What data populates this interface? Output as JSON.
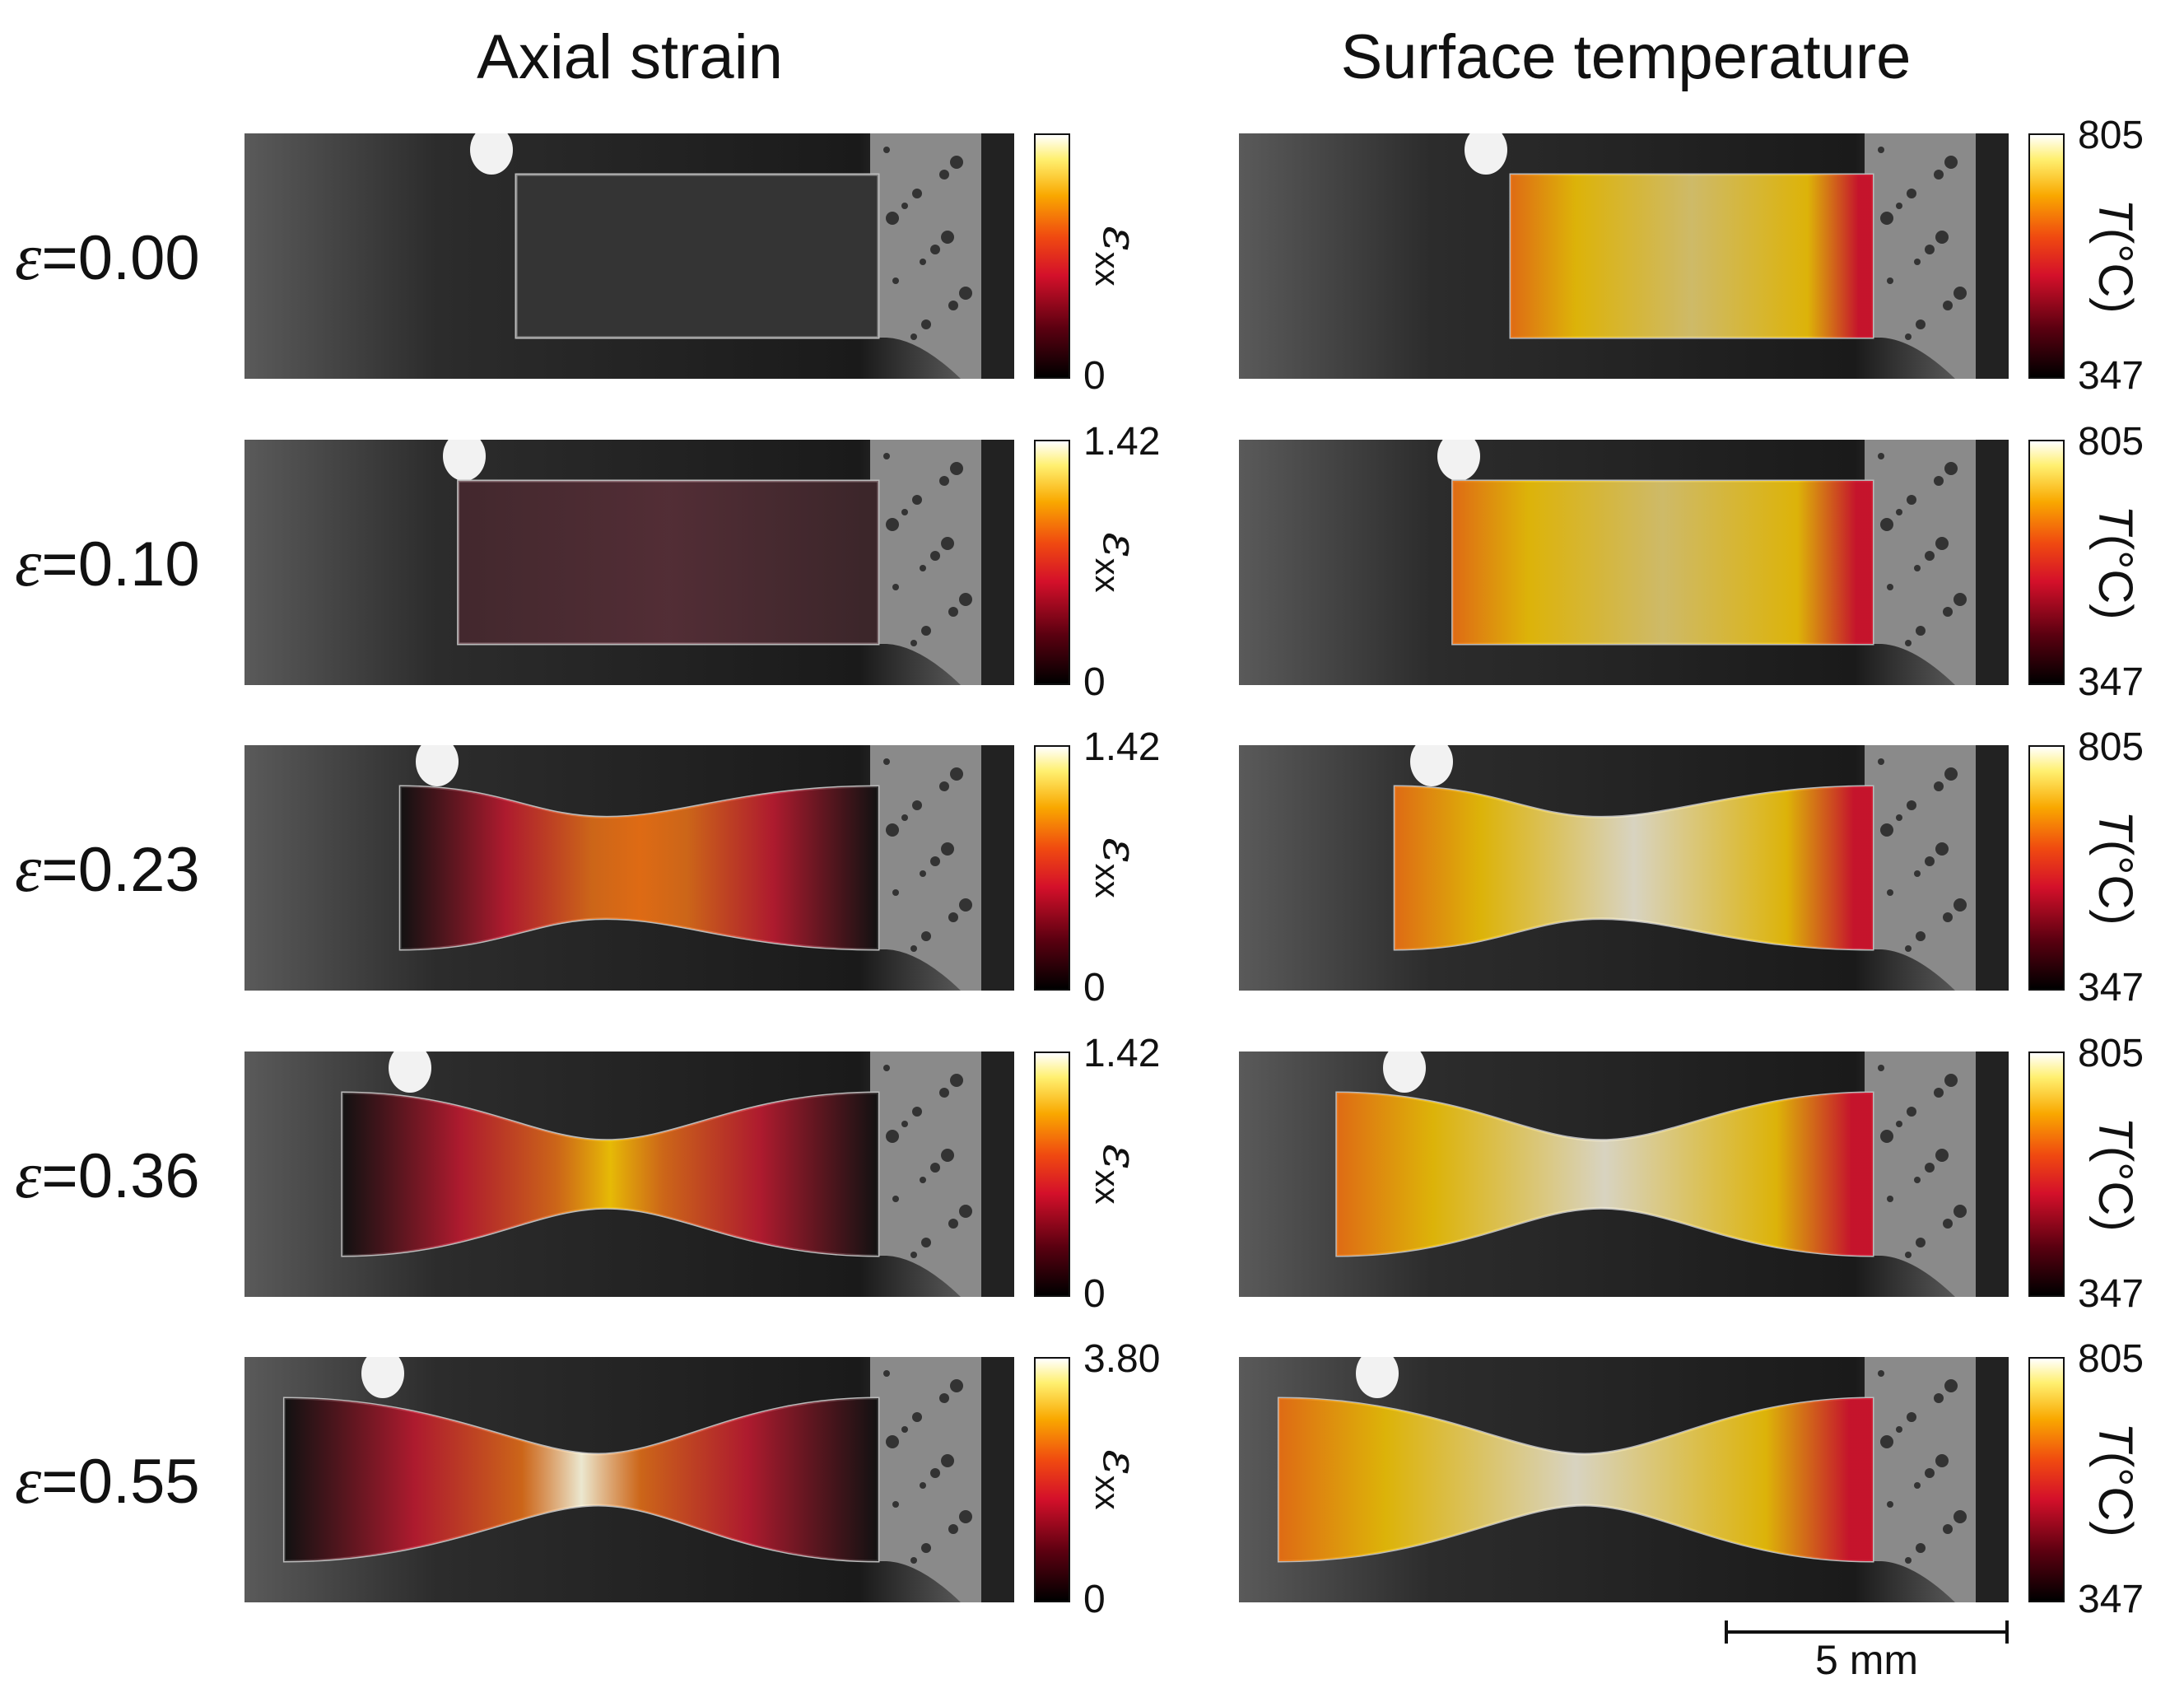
{
  "titles": {
    "strain": "Axial strain",
    "temperature": "Surface temperature"
  },
  "rows": [
    {
      "label_var": "ε",
      "label_value": "=0.00",
      "strain_max": "",
      "strain_min": "0",
      "temp_max": "805",
      "temp_min": "347",
      "shape": "rect",
      "strain_level": 0.0
    },
    {
      "label_var": "ε",
      "label_value": "=0.10",
      "strain_max": "1.42",
      "strain_min": "0",
      "temp_max": "805",
      "temp_min": "347",
      "shape": "rect",
      "strain_level": 0.1
    },
    {
      "label_var": "ε",
      "label_value": "=0.23",
      "strain_max": "1.42",
      "strain_min": "0",
      "temp_max": "805",
      "temp_min": "347",
      "shape": "neck-slight",
      "strain_level": 0.45
    },
    {
      "label_var": "ε",
      "label_value": "=0.36",
      "strain_max": "1.42",
      "strain_min": "0",
      "temp_max": "805",
      "temp_min": "347",
      "shape": "neck-medium",
      "strain_level": 0.85
    },
    {
      "label_var": "ε",
      "label_value": "=0.55",
      "strain_max": "3.80",
      "strain_min": "0",
      "temp_max": "805",
      "temp_min": "347",
      "shape": "neck-deep",
      "strain_level": 1.0
    }
  ],
  "colorbar_labels": {
    "strain_symbol": "ε",
    "strain_subscript": "xx",
    "temp_symbol": "T",
    "temp_unit": "(°C)"
  },
  "scale_bar": {
    "label": "5 mm"
  },
  "colors": {
    "background": "#ffffff",
    "specimen_dark": "#2a2a2a",
    "hot_white": "#fffbe0",
    "yellow": "#f9c800",
    "orange": "#f07010",
    "red": "#d4102a",
    "black": "#000000"
  }
}
